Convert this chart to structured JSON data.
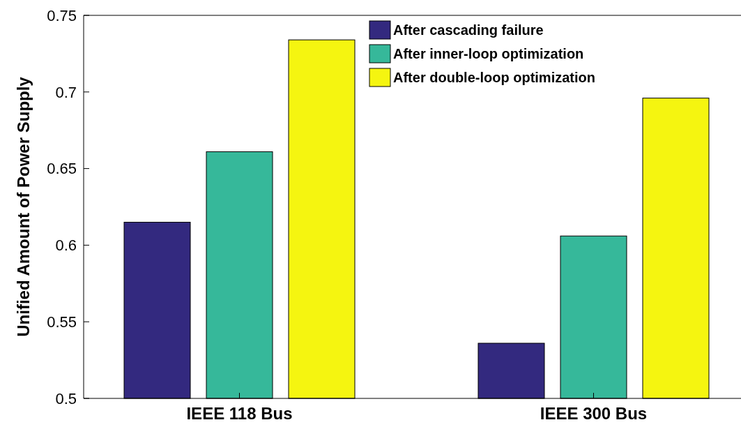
{
  "chart_data": {
    "type": "bar",
    "ylabel": "Unified Amount of Power Supply",
    "categories": [
      "IEEE 118 Bus",
      "IEEE 300 Bus"
    ],
    "series": [
      {
        "name": "After cascading failure",
        "color": "#33297f",
        "values": [
          0.615,
          0.536
        ]
      },
      {
        "name": "After inner-loop optimization",
        "color": "#36b89a",
        "values": [
          0.661,
          0.606
        ]
      },
      {
        "name": "After double-loop optimization",
        "color": "#f5f510",
        "values": [
          0.734,
          0.696
        ]
      }
    ],
    "ylim": [
      0.5,
      0.75
    ],
    "yticks": [
      0.5,
      0.55,
      0.6,
      0.65,
      0.7,
      0.75
    ],
    "legend": "top right"
  }
}
